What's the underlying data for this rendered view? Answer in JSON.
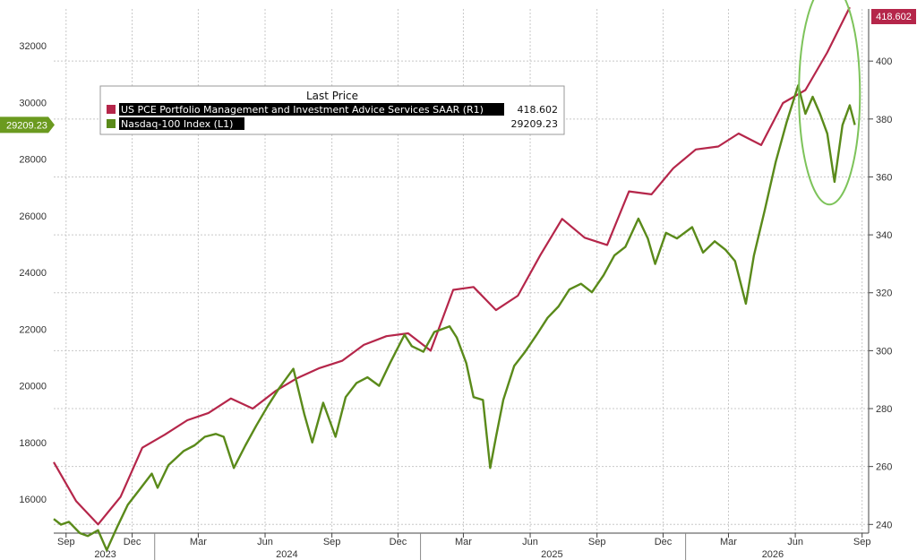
{
  "chart_data": {
    "type": "line",
    "legend": {
      "title": "Last Price",
      "placement": "top-left",
      "entries": [
        {
          "label": "US PCE Portfolio Management and Investment Advice Services SAAR  (R1)",
          "value": "418.602",
          "color": "#b5264a"
        },
        {
          "label": "Nasdaq-100 Index  (L1)",
          "value": "29209.23",
          "color": "#5a8a1a"
        }
      ]
    },
    "last_value_tags": {
      "right": "418.602",
      "left": "29209.23"
    },
    "x_axis": {
      "range": [
        "2023-08-15",
        "2026-09-10"
      ],
      "month_ticks": [
        {
          "label": "Sep",
          "date": "2023-09-01"
        },
        {
          "label": "Dec",
          "date": "2023-12-01"
        },
        {
          "label": "Mar",
          "date": "2024-03-01"
        },
        {
          "label": "Jun",
          "date": "2024-06-01"
        },
        {
          "label": "Sep",
          "date": "2024-09-01"
        },
        {
          "label": "Dec",
          "date": "2024-12-01"
        },
        {
          "label": "Mar",
          "date": "2025-03-01"
        },
        {
          "label": "Jun",
          "date": "2025-06-01"
        },
        {
          "label": "Sep",
          "date": "2025-09-01"
        },
        {
          "label": "Dec",
          "date": "2025-12-01"
        },
        {
          "label": "Mar",
          "date": "2026-03-01"
        },
        {
          "label": "Jun",
          "date": "2026-06-01"
        },
        {
          "label": "Sep",
          "date": "2026-09-01"
        }
      ],
      "year_labels": [
        {
          "label": "2023",
          "date": "2023-10-25"
        },
        {
          "label": "2024",
          "date": "2024-07-01"
        },
        {
          "label": "2025",
          "date": "2025-07-01"
        },
        {
          "label": "2026",
          "date": "2026-05-01"
        }
      ]
    },
    "y_left": {
      "range": [
        14800,
        33300
      ],
      "ticks": [
        16000,
        18000,
        20000,
        22000,
        24000,
        26000,
        28000,
        30000,
        32000
      ]
    },
    "y_right": {
      "range": [
        237,
        418
      ],
      "ticks": [
        240,
        260,
        280,
        300,
        320,
        340,
        360,
        380,
        400
      ]
    },
    "grid": true,
    "series": [
      {
        "name": "US PCE Portfolio Management and Investment Advice Services SAAR",
        "axis": "right",
        "color": "#b5264a",
        "points": [
          [
            "2023-08-15",
            261.5
          ],
          [
            "2023-09-15",
            248.0
          ],
          [
            "2023-10-15",
            240.0
          ],
          [
            "2023-11-15",
            249.5
          ],
          [
            "2023-12-15",
            266.5
          ],
          [
            "2024-01-15",
            271.0
          ],
          [
            "2024-02-15",
            276.0
          ],
          [
            "2024-03-15",
            278.5
          ],
          [
            "2024-04-15",
            283.5
          ],
          [
            "2024-05-15",
            280.0
          ],
          [
            "2024-06-15",
            286.0
          ],
          [
            "2024-07-15",
            290.5
          ],
          [
            "2024-08-15",
            294.0
          ],
          [
            "2024-09-15",
            296.5
          ],
          [
            "2024-10-15",
            302.0
          ],
          [
            "2024-11-15",
            305.0
          ],
          [
            "2024-12-15",
            306.0
          ],
          [
            "2025-01-15",
            300.0
          ],
          [
            "2025-02-15",
            321.0
          ],
          [
            "2025-03-15",
            322.0
          ],
          [
            "2025-04-15",
            314.0
          ],
          [
            "2025-05-15",
            319.0
          ],
          [
            "2025-06-15",
            333.0
          ],
          [
            "2025-07-15",
            345.5
          ],
          [
            "2025-08-15",
            339.0
          ],
          [
            "2025-09-15",
            336.5
          ],
          [
            "2025-10-15",
            355.0
          ],
          [
            "2025-11-15",
            354.0
          ],
          [
            "2025-12-15",
            363.0
          ],
          [
            "2026-01-15",
            369.5
          ],
          [
            "2026-02-15",
            370.5
          ],
          [
            "2026-03-15",
            375.0
          ],
          [
            "2026-04-15",
            371.0
          ],
          [
            "2026-05-15",
            385.5
          ],
          [
            "2026-06-15",
            390.0
          ],
          [
            "2026-07-15",
            403.0
          ],
          [
            "2026-08-15",
            418.602
          ]
        ]
      },
      {
        "name": "Nasdaq-100 Index",
        "axis": "left",
        "color": "#5a8a1a",
        "points": [
          [
            "2023-08-15",
            15300
          ],
          [
            "2023-08-25",
            15100
          ],
          [
            "2023-09-05",
            15200
          ],
          [
            "2023-09-20",
            14800
          ],
          [
            "2023-10-01",
            14700
          ],
          [
            "2023-10-15",
            14900
          ],
          [
            "2023-10-27",
            14200
          ],
          [
            "2023-11-10",
            15000
          ],
          [
            "2023-11-25",
            15800
          ],
          [
            "2023-12-10",
            16300
          ],
          [
            "2023-12-28",
            16900
          ],
          [
            "2024-01-05",
            16400
          ],
          [
            "2024-01-20",
            17200
          ],
          [
            "2024-02-10",
            17700
          ],
          [
            "2024-02-25",
            17900
          ],
          [
            "2024-03-10",
            18200
          ],
          [
            "2024-03-25",
            18300
          ],
          [
            "2024-04-05",
            18200
          ],
          [
            "2024-04-19",
            17100
          ],
          [
            "2024-05-05",
            17900
          ],
          [
            "2024-05-20",
            18600
          ],
          [
            "2024-06-05",
            19300
          ],
          [
            "2024-06-20",
            19900
          ],
          [
            "2024-07-10",
            20600
          ],
          [
            "2024-07-25",
            19000
          ],
          [
            "2024-08-05",
            18000
          ],
          [
            "2024-08-20",
            19400
          ],
          [
            "2024-09-06",
            18200
          ],
          [
            "2024-09-20",
            19600
          ],
          [
            "2024-10-05",
            20100
          ],
          [
            "2024-10-20",
            20300
          ],
          [
            "2024-11-05",
            20000
          ],
          [
            "2024-11-20",
            20800
          ],
          [
            "2024-12-10",
            21800
          ],
          [
            "2024-12-20",
            21400
          ],
          [
            "2025-01-05",
            21200
          ],
          [
            "2025-01-20",
            21900
          ],
          [
            "2025-02-10",
            22100
          ],
          [
            "2025-02-20",
            21700
          ],
          [
            "2025-03-05",
            20800
          ],
          [
            "2025-03-15",
            19600
          ],
          [
            "2025-03-28",
            19500
          ],
          [
            "2025-04-07",
            17100
          ],
          [
            "2025-04-15",
            18200
          ],
          [
            "2025-04-25",
            19500
          ],
          [
            "2025-05-10",
            20700
          ],
          [
            "2025-05-25",
            21200
          ],
          [
            "2025-06-10",
            21800
          ],
          [
            "2025-06-25",
            22400
          ],
          [
            "2025-07-10",
            22800
          ],
          [
            "2025-07-25",
            23400
          ],
          [
            "2025-08-10",
            23600
          ],
          [
            "2025-08-25",
            23300
          ],
          [
            "2025-09-10",
            23900
          ],
          [
            "2025-09-25",
            24600
          ],
          [
            "2025-10-10",
            24900
          ],
          [
            "2025-10-28",
            25900
          ],
          [
            "2025-11-10",
            25200
          ],
          [
            "2025-11-20",
            24300
          ],
          [
            "2025-12-05",
            25400
          ],
          [
            "2025-12-20",
            25200
          ],
          [
            "2026-01-10",
            25600
          ],
          [
            "2026-01-25",
            24700
          ],
          [
            "2026-02-10",
            25100
          ],
          [
            "2026-02-25",
            24800
          ],
          [
            "2026-03-10",
            24400
          ],
          [
            "2026-03-25",
            22900
          ],
          [
            "2026-04-05",
            24600
          ],
          [
            "2026-04-20",
            26200
          ],
          [
            "2026-05-05",
            27900
          ],
          [
            "2026-05-20",
            29300
          ],
          [
            "2026-06-05",
            30600
          ],
          [
            "2026-06-15",
            29600
          ],
          [
            "2026-06-25",
            30200
          ],
          [
            "2026-07-05",
            29600
          ],
          [
            "2026-07-15",
            28900
          ],
          [
            "2026-07-25",
            27200
          ],
          [
            "2026-08-05",
            29200
          ],
          [
            "2026-08-15",
            29900
          ],
          [
            "2026-08-22",
            29209.23
          ]
        ]
      }
    ],
    "annotations": [
      {
        "type": "ellipse",
        "color": "#7dc35a",
        "center": [
          "2026-07-18",
          30300
        ],
        "rx_days": 42,
        "ry": 3900
      }
    ]
  }
}
